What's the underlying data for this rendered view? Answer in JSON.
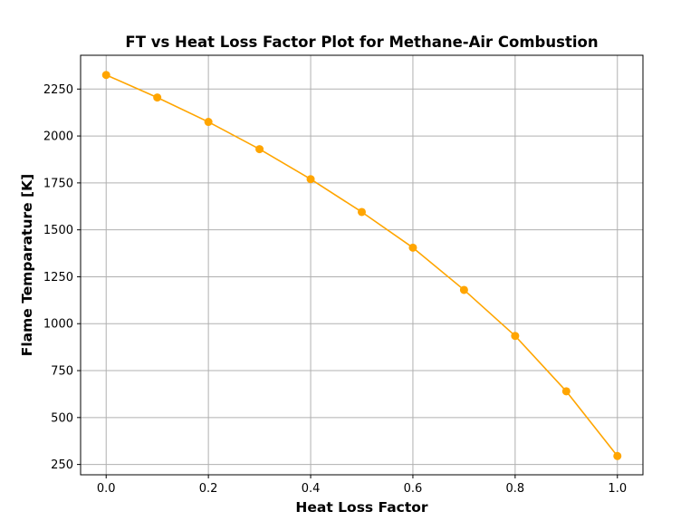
{
  "chart_data": {
    "type": "line",
    "title": "FT vs Heat Loss Factor Plot for Methane-Air Combustion",
    "xlabel": "Heat Loss Factor",
    "ylabel": "Flame Temparature [K]",
    "xlim": [
      -0.05,
      1.05
    ],
    "ylim": [
      195,
      2430
    ],
    "x_ticks": [
      0.0,
      0.2,
      0.4,
      0.6,
      0.8,
      1.0
    ],
    "x_tick_labels": [
      "0.0",
      "0.2",
      "0.4",
      "0.6",
      "0.8",
      "1.0"
    ],
    "y_ticks": [
      250,
      500,
      750,
      1000,
      1250,
      1500,
      1750,
      2000,
      2250
    ],
    "y_tick_labels": [
      "250",
      "500",
      "750",
      "1000",
      "1250",
      "1500",
      "1750",
      "2000",
      "2250"
    ],
    "grid": true,
    "series": [
      {
        "color": "#ffa500",
        "marker": "circle",
        "x": [
          0.0,
          0.1,
          0.2,
          0.3,
          0.4,
          0.5,
          0.6,
          0.7,
          0.8,
          0.9,
          1.0
        ],
        "y": [
          2325,
          2205,
          2075,
          1930,
          1770,
          1595,
          1405,
          1180,
          935,
          640,
          295
        ]
      }
    ]
  }
}
